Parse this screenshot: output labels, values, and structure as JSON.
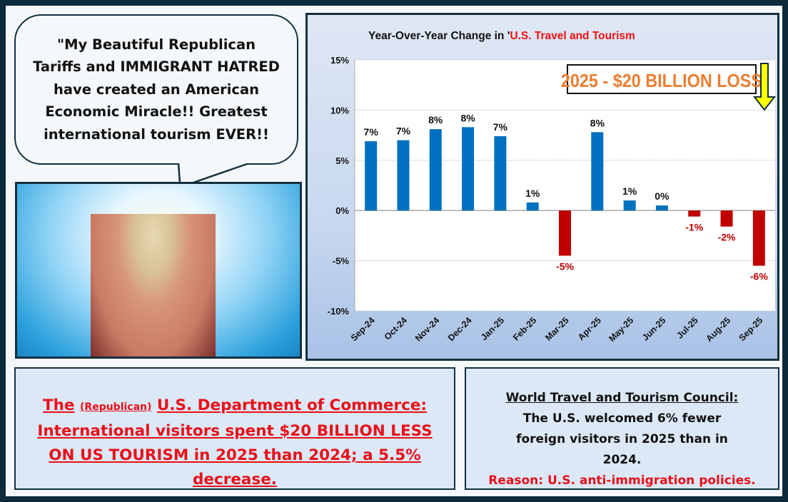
{
  "speech_bubble": {
    "text": "\"My Beautiful Republican Tariffs and IMMIGRANT HATRED have created an American Economic Miracle!! Greatest international tourism EVER!!"
  },
  "left_box": {
    "prefix": "The",
    "qualifier": "(Republican)",
    "source": "U.S. Department of Commerce:",
    "statement": "International visitors spent $20 BILLION LESS ON US TOURISM in 2025 than 2024; a 5.5% decrease."
  },
  "right_box": {
    "source": "World Travel and Tourism Council:",
    "statement": "The U.S. welcomed 6% fewer foreign visitors in 2025 than in 2024.",
    "reason": "Reason: U.S. anti-immigration policies."
  },
  "callout": {
    "text": "2025 - $20 BILLION LOSS",
    "color": "#ed7d31",
    "arrow_color": "#ffff00"
  },
  "chart_data": {
    "type": "bar",
    "title_prefix": "Year-Over-Year Change in '",
    "title_highlight": "U.S. Travel and Tourism",
    "categories": [
      "Sep-24",
      "Oct-24",
      "Nov-24",
      "Dec-24",
      "Jan-25",
      "Feb-25",
      "Mar-25",
      "Apr-25",
      "May-25",
      "Jun-25",
      "Jul-25",
      "Aug-25",
      "Sep-25"
    ],
    "values": [
      6.9,
      7.0,
      8.1,
      8.3,
      7.4,
      0.8,
      -4.5,
      7.8,
      1.0,
      0.5,
      -0.6,
      -1.6,
      -5.5
    ],
    "data_labels": [
      "7%",
      "7%",
      "8%",
      "8%",
      "7%",
      "1%",
      "-5%",
      "8%",
      "1%",
      "0%",
      "-1%",
      "-2%",
      "-6%"
    ],
    "ylim": [
      -10,
      15
    ],
    "yticks": [
      "15%",
      "10%",
      "5%",
      "0%",
      "-5%",
      "-10%"
    ],
    "ytick_values": [
      15,
      10,
      5,
      0,
      -5,
      -10
    ],
    "grid": true,
    "colors": {
      "positive": "#0070c0",
      "negative": "#c00000",
      "negative_label": "#c00000"
    }
  }
}
